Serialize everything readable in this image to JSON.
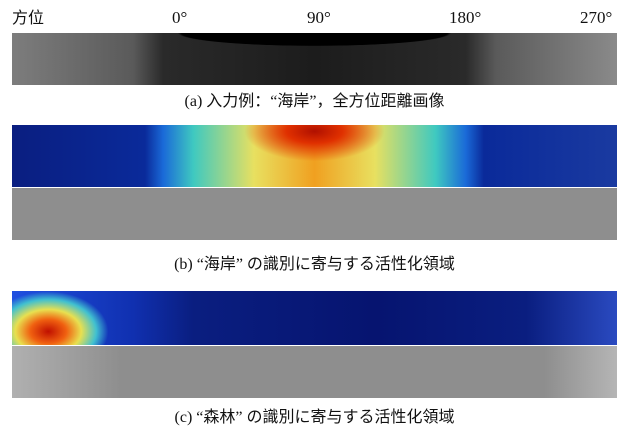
{
  "axis": {
    "title": "方位",
    "ticks": [
      "0°",
      "90°",
      "180°",
      "270°"
    ]
  },
  "panels": [
    {
      "caption": "(a) 入力例：“海岸”，全方位距離画像"
    },
    {
      "caption": "(b) “海岸” の識別に寄与する活性化領域"
    },
    {
      "caption": "(c) “森林” の識別に寄与する活性化領域"
    }
  ]
}
